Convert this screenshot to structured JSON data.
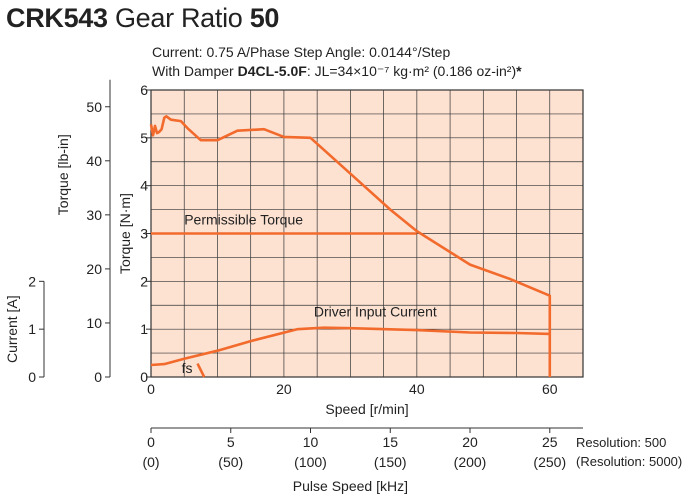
{
  "header": {
    "model": "CRK543",
    "gear_ratio_label": "Gear Ratio",
    "gear_ratio_value": "50",
    "conditions_line1": "Current: 0.75 A/Phase  Step Angle: 0.0144°/Step",
    "conditions_line2_prefix": "With Damper",
    "damper_model": "D4CL-5.0F",
    "conditions_line2_suffix": ": JL=34×10⁻⁷ kg·m² (0.186 oz-in²)",
    "asterisk": "*"
  },
  "colors": {
    "plot_background": "#fde2d2",
    "curve": "#f26a2c",
    "grid": "#333333",
    "text": "#222222"
  },
  "chart_data": {
    "type": "line",
    "xlabel": "Speed [r/min]",
    "xlim": [
      0,
      65
    ],
    "x_ticks": [
      0,
      20,
      40,
      60
    ],
    "ylabel_nm": "Torque [N·m]",
    "ylim_nm": [
      0,
      6
    ],
    "y_ticks_nm": [
      0,
      1,
      2,
      3,
      4,
      5,
      6
    ],
    "ylabel_lbin": "Torque [lb-in]",
    "y_ticks_lbin": [
      0,
      10,
      20,
      30,
      40,
      50
    ],
    "ylabel_current": "Current [A]",
    "y_ticks_current": [
      0,
      1,
      2
    ],
    "pulse_axis": {
      "label": "Pulse Speed [kHz]",
      "ticks": [
        "0",
        "5",
        "10",
        "15",
        "20",
        "25"
      ],
      "ticks_sub": [
        "(0)",
        "(50)",
        "(100)",
        "(150)",
        "(200)",
        "(250)"
      ],
      "note1": "Resolution: 500",
      "note2": "(Resolution: 5000)"
    },
    "series": [
      {
        "role": "pullout",
        "x": [
          0,
          0.3,
          0.6,
          0.9,
          1.2,
          1.6,
          2.0,
          2.3,
          3.0,
          4.5,
          5.5,
          7.5,
          10,
          13,
          17,
          20,
          24,
          30,
          36,
          40,
          48,
          54,
          60,
          60
        ],
        "y": [
          5.28,
          5.05,
          5.25,
          5.1,
          5.12,
          5.18,
          5.42,
          5.45,
          5.38,
          5.35,
          5.2,
          4.95,
          4.95,
          5.15,
          5.18,
          5.02,
          5.0,
          4.25,
          3.5,
          3.05,
          2.35,
          2.05,
          1.7,
          0
        ]
      },
      {
        "role": "permissible",
        "x": [
          0,
          40
        ],
        "y": [
          3.0,
          3.0
        ]
      },
      {
        "role": "current",
        "x": [
          0,
          2,
          5,
          10,
          15,
          22,
          26,
          30,
          40,
          48,
          55,
          60
        ],
        "y": [
          0.25,
          0.27,
          0.38,
          0.55,
          0.75,
          1.0,
          1.03,
          1.02,
          0.98,
          0.93,
          0.92,
          0.9
        ]
      },
      {
        "role": "fs",
        "x": [
          7.0,
          8.0
        ],
        "y": [
          0.28,
          0.0
        ]
      }
    ],
    "annotations": {
      "permissible": "Permissible Torque",
      "current": "Driver Input Current",
      "fs": "fs"
    }
  }
}
